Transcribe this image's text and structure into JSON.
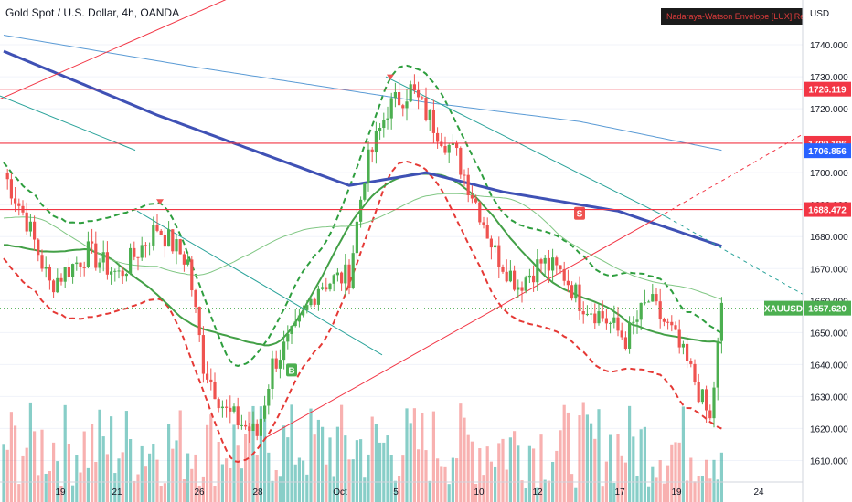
{
  "header": {
    "title": "Gold Spot / U.S. Dollar, 4h, OANDA",
    "indicator_badge": "Nadaraya-Watson Envelope [LUX] Repaints",
    "currency": "USD"
  },
  "colors": {
    "up": "#26a69a",
    "down": "#ef5350",
    "green_candle": "#4caf50",
    "red_line": "#f23645",
    "blue_ma": "#3f51b5",
    "light_blue": "#5b9bd5",
    "teal_line": "#2aa39a",
    "price_tag": "#4caf50",
    "blue_tag": "#2962ff"
  },
  "chart_data": {
    "type": "candlestick",
    "y_axis": {
      "ticks": [
        1740,
        1730,
        1720,
        1710,
        1700,
        1690,
        1680,
        1670,
        1660,
        1650,
        1640,
        1630,
        1620,
        1610
      ],
      "tick_labels": [
        "1740.000",
        "1730.000",
        "1720.000",
        "1710.000",
        "1700.000",
        "1690.000",
        "1680.000",
        "1670.000",
        "1660.000",
        "1650.000",
        "1640.000",
        "1630.000",
        "1620.000",
        "1610.000"
      ],
      "range": [
        1597,
        1754
      ]
    },
    "x_axis": {
      "labels": [
        "19",
        "21",
        "26",
        "28",
        "Oct",
        "5",
        "10",
        "12",
        "17",
        "19",
        "24"
      ]
    },
    "horizontal_levels": [
      1726.119,
      1709.196,
      1688.472
    ],
    "price_tags": [
      {
        "label": "1726.119",
        "value": 1726.119,
        "color": "#f23645"
      },
      {
        "label": "1709.196",
        "value": 1709.196,
        "color": "#f23645"
      },
      {
        "label": "1706.856",
        "value": 1706.856,
        "color": "#2962ff"
      },
      {
        "label": "1688.472",
        "value": 1688.472,
        "color": "#f23645"
      },
      {
        "label": "1657.620",
        "value": 1657.62,
        "color": "#4caf50"
      }
    ],
    "symbol_tag": "XAUUSD",
    "last_price": 1657.62,
    "signals": [
      {
        "label": "B",
        "type": "buy",
        "x_index": 75,
        "price": 1638
      },
      {
        "label": "S",
        "type": "sell",
        "x_index": 150,
        "price": 1687
      }
    ]
  }
}
